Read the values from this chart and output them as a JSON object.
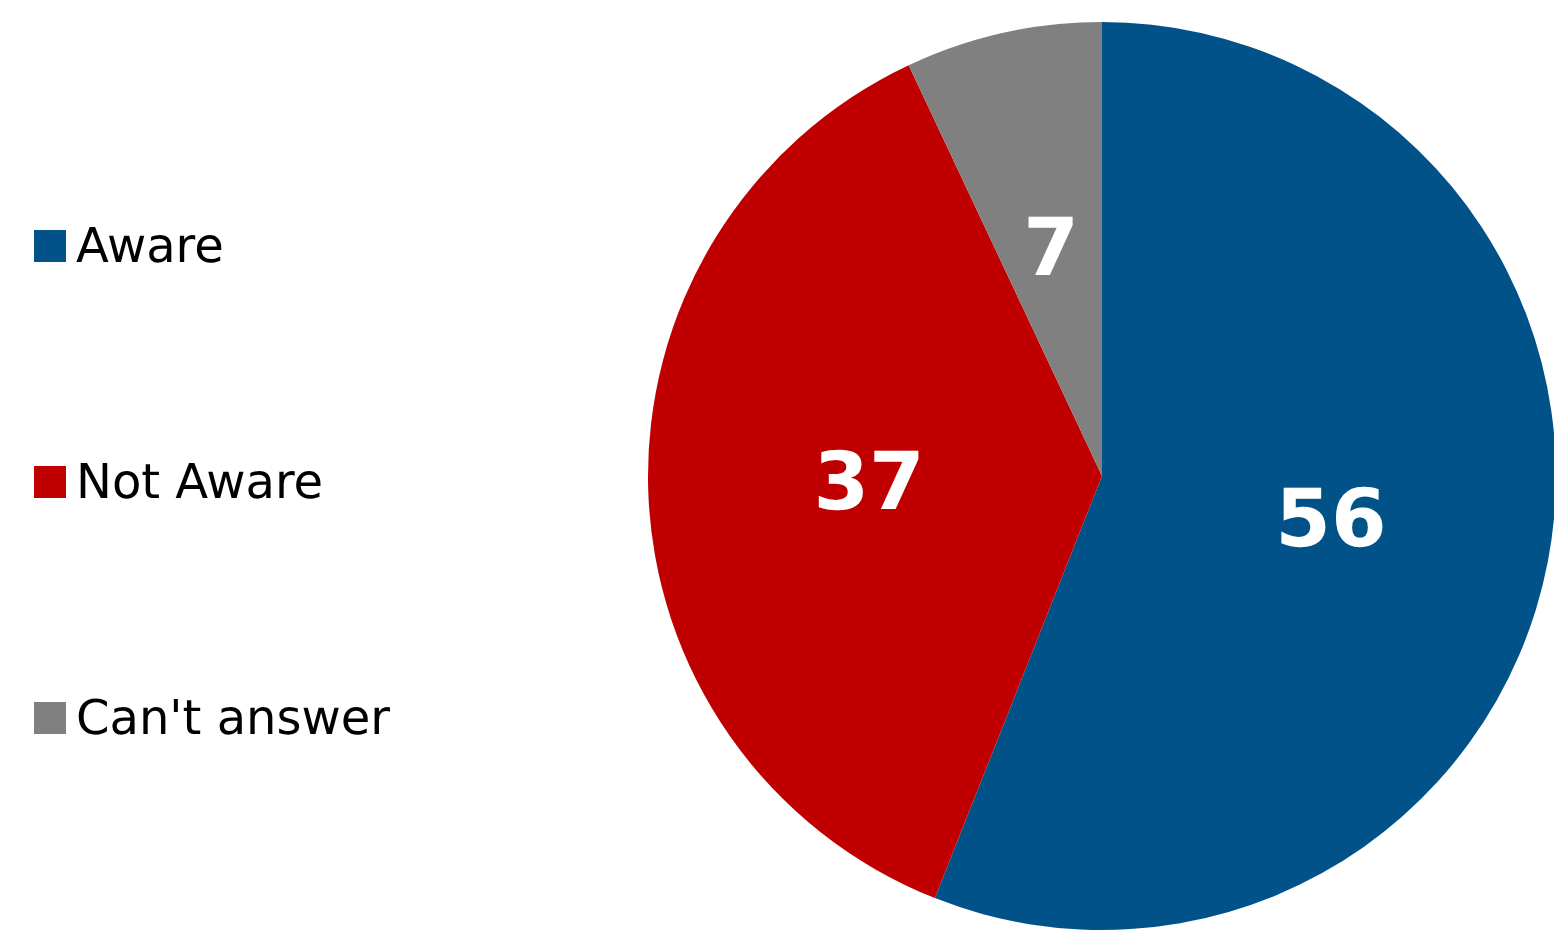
{
  "chart_data": {
    "type": "pie",
    "categories": [
      "Aware",
      "Not Aware",
      "Can't answer"
    ],
    "values": [
      56,
      37,
      7
    ],
    "colors": [
      "#02528a",
      "#c00000",
      "#808080"
    ],
    "data_labels": true,
    "legend": "left"
  }
}
